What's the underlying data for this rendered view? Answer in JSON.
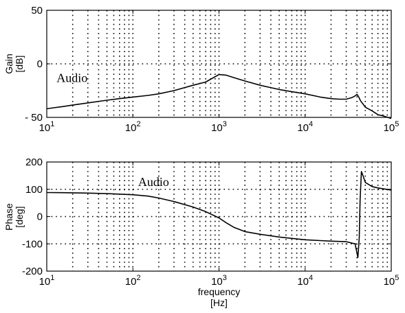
{
  "chart_data": [
    {
      "type": "line",
      "xscale": "log",
      "xlim": [
        10,
        100000
      ],
      "ylim": [
        -50,
        50
      ],
      "ylabel_lines": [
        "Gain",
        "[dB]"
      ],
      "xticks": [
        {
          "v": 10,
          "label": "10",
          "exp": "1"
        },
        {
          "v": 100,
          "label": "10",
          "exp": "2"
        },
        {
          "v": 1000,
          "label": "10",
          "exp": "3"
        },
        {
          "v": 10000,
          "label": "10",
          "exp": "4"
        },
        {
          "v": 100000,
          "label": "10",
          "exp": "5"
        }
      ],
      "yticks": [
        {
          "v": 50,
          "label": "50"
        },
        {
          "v": 0,
          "label": "0"
        },
        {
          "v": -50,
          "label": "- 50"
        }
      ],
      "grid": true,
      "annotation": {
        "text": "Audio",
        "x": 13,
        "y": -17
      },
      "series": [
        {
          "x": [
            10,
            12,
            15,
            20,
            30,
            50,
            70,
            100,
            150,
            200,
            300,
            500,
            700,
            1000,
            1200,
            1500,
            2000,
            3000,
            5000,
            7000,
            10000,
            15000,
            20000,
            25000,
            30000,
            35000,
            38000,
            40000,
            42000,
            44000,
            47000,
            50000,
            60000,
            70000,
            80000,
            100000
          ],
          "y": [
            -42,
            -41,
            -40,
            -38.5,
            -36.5,
            -34,
            -32.5,
            -31,
            -29.5,
            -28,
            -25,
            -20,
            -17,
            -10,
            -10.5,
            -13,
            -16,
            -20,
            -24,
            -26,
            -28,
            -31,
            -32.5,
            -33,
            -33,
            -31.5,
            -30,
            -28.5,
            -31,
            -34.5,
            -37.5,
            -40.5,
            -44,
            -47.5,
            -48.5,
            -51
          ]
        }
      ]
    },
    {
      "type": "line",
      "xscale": "log",
      "xlim": [
        10,
        100000
      ],
      "ylim": [
        -200,
        200
      ],
      "xlabel_lines": [
        "frequency",
        "[Hz]"
      ],
      "ylabel_lines": [
        "Phase",
        "[deg]"
      ],
      "xticks": [
        {
          "v": 10,
          "label": "10",
          "exp": "1"
        },
        {
          "v": 100,
          "label": "10",
          "exp": "2"
        },
        {
          "v": 1000,
          "label": "10",
          "exp": "3"
        },
        {
          "v": 10000,
          "label": "10",
          "exp": "4"
        },
        {
          "v": 100000,
          "label": "10",
          "exp": "5"
        }
      ],
      "yticks": [
        {
          "v": 200,
          "label": "200"
        },
        {
          "v": 100,
          "label": "100"
        },
        {
          "v": 0,
          "label": "0"
        },
        {
          "v": -100,
          "label": "-100"
        },
        {
          "v": -200,
          "label": "-200"
        }
      ],
      "grid": true,
      "annotation": {
        "text": "Audio",
        "x": 115,
        "y": 112
      },
      "series": [
        {
          "x": [
            10,
            15,
            20,
            30,
            50,
            100,
            150,
            200,
            300,
            500,
            700,
            1000,
            1200,
            1500,
            2000,
            3000,
            5000,
            7000,
            10000,
            15000,
            20000,
            30000,
            38000,
            41000,
            42500,
            43500,
            45000,
            47000,
            50000,
            60000,
            70000,
            100000
          ],
          "y": [
            88,
            87.5,
            87,
            86,
            84,
            80,
            75,
            68,
            55,
            35,
            18,
            -5,
            -22,
            -40,
            -55,
            -65,
            -75,
            -80,
            -85,
            -88,
            -90,
            -92,
            -100,
            -150,
            -75,
            60,
            165,
            150,
            125,
            110,
            105,
            97
          ]
        }
      ]
    }
  ]
}
